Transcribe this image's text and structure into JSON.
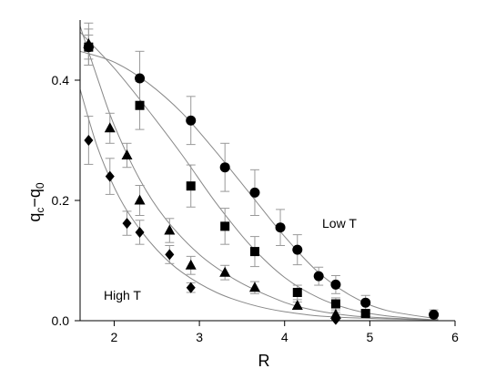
{
  "chart_data": {
    "type": "scatter",
    "title": "",
    "xlabel": "R",
    "ylabel": {
      "main": "q",
      "sub_c": "c",
      "dash": "−",
      "q2": "q",
      "sub_0": "0"
    },
    "xlim": [
      1.6,
      6.0
    ],
    "ylim": [
      0.0,
      0.5
    ],
    "xticks": [
      2,
      3,
      4,
      5,
      6
    ],
    "yticks": [
      0.0,
      0.2,
      0.4
    ],
    "ytick_labels": [
      "0.0",
      "0.2",
      "0.4"
    ],
    "grid": false,
    "annotations": [
      {
        "text": "Low T",
        "x": 4.4,
        "y": 0.16
      },
      {
        "text": "High T",
        "x": 1.75,
        "y": 0.08
      }
    ],
    "series": [
      {
        "marker": "circle",
        "points": [
          {
            "x": 1.7,
            "y": 0.455,
            "err": 0.02
          },
          {
            "x": 2.3,
            "y": 0.403,
            "err": 0.045
          },
          {
            "x": 2.9,
            "y": 0.333,
            "err": 0.04
          },
          {
            "x": 3.3,
            "y": 0.255,
            "err": 0.04
          },
          {
            "x": 3.65,
            "y": 0.213,
            "err": 0.038
          },
          {
            "x": 3.95,
            "y": 0.155,
            "err": 0.03
          },
          {
            "x": 4.15,
            "y": 0.118,
            "err": 0.025
          },
          {
            "x": 4.4,
            "y": 0.074,
            "err": 0.015
          },
          {
            "x": 4.6,
            "y": 0.06,
            "err": 0.015
          },
          {
            "x": 4.95,
            "y": 0.03,
            "err": 0.012
          },
          {
            "x": 5.75,
            "y": 0.01,
            "err": 0.008
          }
        ],
        "fit": [
          [
            1.6,
            0.448
          ],
          [
            2.0,
            0.43
          ],
          [
            2.4,
            0.395
          ],
          [
            2.8,
            0.345
          ],
          [
            3.2,
            0.28
          ],
          [
            3.6,
            0.21
          ],
          [
            4.0,
            0.14
          ],
          [
            4.4,
            0.08
          ],
          [
            4.8,
            0.04
          ],
          [
            5.2,
            0.017
          ],
          [
            5.8,
            0.003
          ]
        ]
      },
      {
        "marker": "square",
        "points": [
          {
            "x": 1.7,
            "y": 0.455,
            "err": 0.03
          },
          {
            "x": 2.3,
            "y": 0.358,
            "err": 0.04
          },
          {
            "x": 2.9,
            "y": 0.224,
            "err": 0.035
          },
          {
            "x": 3.3,
            "y": 0.157,
            "err": 0.03
          },
          {
            "x": 3.65,
            "y": 0.115,
            "err": 0.025
          },
          {
            "x": 4.15,
            "y": 0.047,
            "err": 0.012
          },
          {
            "x": 4.6,
            "y": 0.028,
            "err": 0.01
          },
          {
            "x": 4.95,
            "y": 0.012,
            "err": 0.005
          }
        ],
        "fit": [
          [
            1.6,
            0.48
          ],
          [
            2.0,
            0.42
          ],
          [
            2.4,
            0.35
          ],
          [
            2.8,
            0.275
          ],
          [
            3.2,
            0.195
          ],
          [
            3.6,
            0.125
          ],
          [
            4.0,
            0.072
          ],
          [
            4.4,
            0.038
          ],
          [
            4.8,
            0.018
          ],
          [
            5.2,
            0.008
          ],
          [
            5.8,
            0.001
          ]
        ]
      },
      {
        "marker": "triangle",
        "points": [
          {
            "x": 1.7,
            "y": 0.46,
            "err": 0.035
          },
          {
            "x": 1.95,
            "y": 0.32,
            "err": 0.025
          },
          {
            "x": 2.15,
            "y": 0.275,
            "err": 0.02
          },
          {
            "x": 2.3,
            "y": 0.2,
            "err": 0.025
          },
          {
            "x": 2.65,
            "y": 0.15,
            "err": 0.02
          },
          {
            "x": 2.9,
            "y": 0.092,
            "err": 0.015
          },
          {
            "x": 3.3,
            "y": 0.08,
            "err": 0.012
          },
          {
            "x": 3.65,
            "y": 0.055,
            "err": 0.01
          },
          {
            "x": 4.15,
            "y": 0.025,
            "err": 0.006
          },
          {
            "x": 4.6,
            "y": 0.01,
            "err": 0.004
          }
        ],
        "fit": [
          [
            1.6,
            0.49
          ],
          [
            1.8,
            0.405
          ],
          [
            2.0,
            0.325
          ],
          [
            2.3,
            0.235
          ],
          [
            2.6,
            0.17
          ],
          [
            3.0,
            0.11
          ],
          [
            3.4,
            0.07
          ],
          [
            3.8,
            0.042
          ],
          [
            4.2,
            0.022
          ],
          [
            4.8,
            0.008
          ],
          [
            5.8,
            0.001
          ]
        ]
      },
      {
        "marker": "diamond",
        "points": [
          {
            "x": 1.7,
            "y": 0.3,
            "err": 0.04
          },
          {
            "x": 1.95,
            "y": 0.24,
            "err": 0.03
          },
          {
            "x": 2.15,
            "y": 0.162,
            "err": 0.02
          },
          {
            "x": 2.3,
            "y": 0.147,
            "err": 0.02
          },
          {
            "x": 2.65,
            "y": 0.11,
            "err": 0.015
          },
          {
            "x": 2.9,
            "y": 0.055,
            "err": 0.008
          },
          {
            "x": 4.6,
            "y": 0.002,
            "err": 0.003
          }
        ],
        "fit": [
          [
            1.6,
            0.385
          ],
          [
            1.8,
            0.29
          ],
          [
            2.0,
            0.222
          ],
          [
            2.2,
            0.172
          ],
          [
            2.5,
            0.118
          ],
          [
            2.8,
            0.08
          ],
          [
            3.2,
            0.047
          ],
          [
            3.6,
            0.027
          ],
          [
            4.0,
            0.015
          ],
          [
            4.6,
            0.006
          ],
          [
            5.8,
            0.001
          ]
        ]
      }
    ]
  }
}
